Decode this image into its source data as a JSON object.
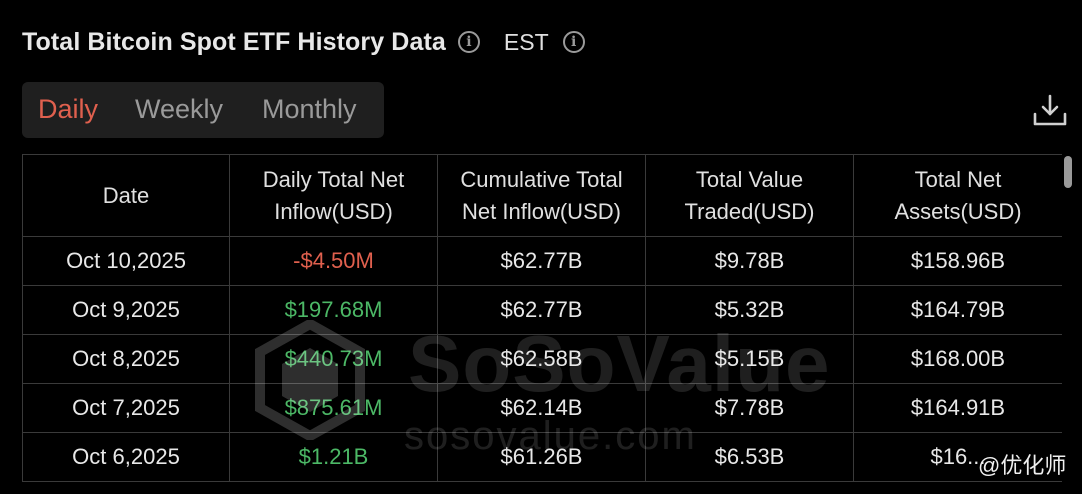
{
  "header": {
    "title": "Total Bitcoin Spot ETF History Data",
    "info_glyph": "i",
    "timezone": "EST"
  },
  "tabs": [
    {
      "label": "Daily",
      "active": true
    },
    {
      "label": "Weekly",
      "active": false
    },
    {
      "label": "Monthly",
      "active": false
    }
  ],
  "download_icon": "download-icon",
  "table": {
    "columns": [
      {
        "line1": "Date",
        "line2": ""
      },
      {
        "line1": "Daily Total Net",
        "line2": "Inflow(USD)"
      },
      {
        "line1": "Cumulative Total",
        "line2": "Net Inflow(USD)"
      },
      {
        "line1": "Total Value",
        "line2": "Traded(USD)"
      },
      {
        "line1": "Total Net",
        "line2": "Assets(USD)"
      }
    ],
    "rows": [
      {
        "date": "Oct 10,2025",
        "daily_inflow": "-$4.50M",
        "cumulative": "$62.77B",
        "traded": "$9.78B",
        "assets": "$158.96B"
      },
      {
        "date": "Oct 9,2025",
        "daily_inflow": "$197.68M",
        "cumulative": "$62.77B",
        "traded": "$5.32B",
        "assets": "$164.79B"
      },
      {
        "date": "Oct 8,2025",
        "daily_inflow": "$440.73M",
        "cumulative": "$62.58B",
        "traded": "$5.15B",
        "assets": "$168.00B"
      },
      {
        "date": "Oct 7,2025",
        "daily_inflow": "$875.61M",
        "cumulative": "$62.14B",
        "traded": "$7.78B",
        "assets": "$164.91B"
      },
      {
        "date": "Oct 6,2025",
        "daily_inflow": "$1.21B",
        "cumulative": "$61.26B",
        "traded": "$6.53B",
        "assets": "$16..."
      }
    ]
  },
  "watermark": {
    "brand": "SoSoValue",
    "url": "sosovalue.com",
    "corner": "@优化师"
  },
  "colors": {
    "background": "#000000",
    "negative": "#e0604e",
    "positive": "#4cb866",
    "active_tab": "#e0604e",
    "grid": "#3a3a3a"
  }
}
